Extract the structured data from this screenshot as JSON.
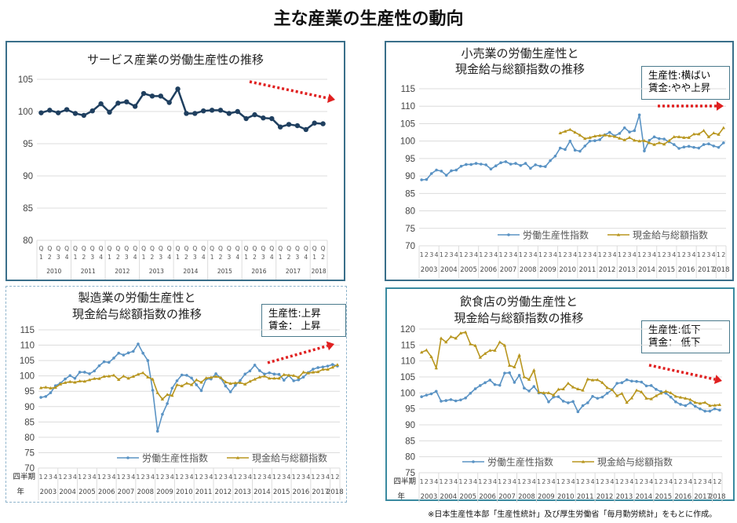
{
  "title": "主な産業の生産性の動向",
  "footnote": "※日本生産性本部「生産性統計」及び厚生労働省「毎月勤労統計」をもとに作成。",
  "colors": {
    "productivity": "#5a93c4",
    "wages": "#b8961f",
    "service_line": "#1f3f5f",
    "arrow": "#e02020"
  },
  "chart_data": [
    {
      "id": "service",
      "type": "line",
      "title": "サービス産業の労働生産性の推移",
      "ylim": [
        80,
        105
      ],
      "yticks": [
        80,
        85,
        90,
        95,
        100,
        105
      ],
      "grid": true,
      "quarter_prefix": "Q",
      "years": [
        "2010",
        "2011",
        "2012",
        "2013",
        "2014",
        "2015",
        "2016",
        "2017",
        "2018"
      ],
      "start_quarter": 1,
      "end_quarter_last_year": 2,
      "trend": "down",
      "series": [
        {
          "values": [
            99.8,
            100.2,
            99.8,
            100.3,
            99.7,
            99.4,
            100.1,
            101.2,
            99.9,
            101.3,
            101.5,
            100.8,
            102.8,
            102.4,
            102.4,
            101.4,
            103.5,
            99.7,
            99.7,
            100.1,
            100.2,
            100.2,
            99.7,
            100.0,
            98.9,
            99.5,
            99.0,
            98.9,
            97.6,
            98.0,
            97.8,
            97.2,
            98.2,
            98.1
          ]
        }
      ]
    },
    {
      "id": "retail",
      "type": "line",
      "title": [
        "小売業の労働生産性と",
        "現金給与総額指数の推移"
      ],
      "note": [
        "生産性:横ばい",
        "賃金:やや上昇"
      ],
      "ylim": [
        70,
        115
      ],
      "yticks": [
        70,
        75,
        80,
        85,
        90,
        95,
        100,
        105,
        110,
        115
      ],
      "grid": true,
      "years": [
        "2003",
        "2004",
        "2005",
        "2006",
        "2007",
        "2008",
        "2009",
        "2010",
        "2011",
        "2012",
        "2013",
        "2014",
        "2015",
        "2016",
        "2017",
        "2018"
      ],
      "legend_position": "bottom-inside",
      "trend": "flat",
      "series": [
        {
          "name": "労働生産性指数",
          "values": [
            88.9,
            89.0,
            90.7,
            91.7,
            91.4,
            90.2,
            91.5,
            91.7,
            92.8,
            93.3,
            93.3,
            93.6,
            93.4,
            93.2,
            92.0,
            92.9,
            93.8,
            94.1,
            93.4,
            93.6,
            93.0,
            93.6,
            92.2,
            93.2,
            92.8,
            92.7,
            94.4,
            95.7,
            98.0,
            97.6,
            100.0,
            97.4,
            97.1,
            98.6,
            100.0,
            100.1,
            100.4,
            101.8,
            102.5,
            101.5,
            102.2,
            103.8,
            102.6,
            103.0,
            107.5,
            97.2,
            100.2,
            101.2,
            100.7,
            100.6,
            99.8,
            99.0,
            97.9,
            98.3,
            98.5,
            98.2,
            98.0,
            99.0,
            99.2,
            98.6,
            98.2,
            99.5
          ]
        },
        {
          "name": "現金給与総額指数",
          "values": [
            null,
            null,
            null,
            null,
            null,
            null,
            null,
            null,
            null,
            null,
            null,
            null,
            null,
            null,
            null,
            null,
            null,
            null,
            null,
            null,
            null,
            null,
            null,
            null,
            null,
            null,
            null,
            null,
            102.3,
            102.8,
            103.3,
            102.5,
            101.7,
            100.7,
            101.0,
            101.4,
            101.6,
            101.7,
            101.5,
            101.3,
            100.8,
            100.3,
            101.0,
            100.2,
            100.0,
            100.1,
            99.5,
            99.0,
            99.5,
            99.1,
            100.1,
            101.2,
            101.2,
            101.0,
            101.0,
            102.0,
            102.0,
            103.0,
            101.2,
            102.3,
            101.9,
            103.8
          ]
        }
      ]
    },
    {
      "id": "manufacturing",
      "type": "line",
      "title": [
        "製造業の労働生産性と",
        "現金給与総額指数の推移"
      ],
      "note": [
        "生産性:上昇",
        "賃金：  上昇"
      ],
      "ylim": [
        70,
        115
      ],
      "yticks": [
        70,
        75,
        80,
        85,
        90,
        95,
        100,
        105,
        110,
        115
      ],
      "grid": true,
      "row_labels": [
        "四半期",
        "年"
      ],
      "years": [
        "2003",
        "2004",
        "2005",
        "2006",
        "2007",
        "2008",
        "2009",
        "2010",
        "2011",
        "2012",
        "2013",
        "2014",
        "2015",
        "2016",
        "2017",
        "2018"
      ],
      "legend_position": "bottom-inside",
      "trend": "up",
      "series": [
        {
          "name": "労働生産性指数",
          "values": [
            93.0,
            93.3,
            94.5,
            96.8,
            97.6,
            99.0,
            100.1,
            99.2,
            101.2,
            101.2,
            100.7,
            101.6,
            103.3,
            104.6,
            104.4,
            105.8,
            107.4,
            106.8,
            107.5,
            108.0,
            110.4,
            107.4,
            105.0,
            95.3,
            82.0,
            87.5,
            91.0,
            96.0,
            98.4,
            100.3,
            100.2,
            99.3,
            97.1,
            95.2,
            99.0,
            99.0,
            100.7,
            99.3,
            96.7,
            94.8,
            96.9,
            98.5,
            100.6,
            101.6,
            103.5,
            101.7,
            100.6,
            101.0,
            100.6,
            100.5,
            98.6,
            100.1,
            98.4,
            98.7,
            99.6,
            101.1,
            102.2,
            102.7,
            102.9,
            103.2,
            103.7,
            103.2
          ]
        },
        {
          "name": "現金給与総額指数",
          "values": [
            96.1,
            96.3,
            96.0,
            96.2,
            97.3,
            97.8,
            98.1,
            97.9,
            98.3,
            98.2,
            98.7,
            99.1,
            99.1,
            99.8,
            99.9,
            100.2,
            98.8,
            99.9,
            99.2,
            99.8,
            100.5,
            101.0,
            99.6,
            98.9,
            94.5,
            92.4,
            93.9,
            93.6,
            97.1,
            96.7,
            97.6,
            97.1,
            98.7,
            97.9,
            99.3,
            99.5,
            99.8,
            99.4,
            98.0,
            97.5,
            97.7,
            97.8,
            97.3,
            98.2,
            98.9,
            99.6,
            99.9,
            99.2,
            99.2,
            99.2,
            100.4,
            100.2,
            100.1,
            99.5,
            101.2,
            100.9,
            101.2,
            101.3,
            102.1,
            102.1,
            102.8,
            103.6
          ]
        }
      ]
    },
    {
      "id": "restaurant",
      "type": "line",
      "title": [
        "飲食店の労働生産性と",
        "現金給与総額指数の推移"
      ],
      "note": [
        "生産性:低下",
        "賃金：  低下"
      ],
      "ylim": [
        75,
        120
      ],
      "yticks": [
        75,
        80,
        85,
        90,
        95,
        100,
        105,
        110,
        115,
        120
      ],
      "grid": true,
      "row_labels": [
        "四半期",
        "年"
      ],
      "years": [
        "2003",
        "2004",
        "2005",
        "2006",
        "2007",
        "2008",
        "2009",
        "2010",
        "2011",
        "2012",
        "2013",
        "2014",
        "2015",
        "2016",
        "2017",
        "2018"
      ],
      "legend_position": "bottom-inside",
      "trend": "down",
      "series": [
        {
          "name": "労働生産性指数",
          "values": [
            98.8,
            99.3,
            99.7,
            100.5,
            97.4,
            97.6,
            97.9,
            97.5,
            97.8,
            98.4,
            99.9,
            101.3,
            102.3,
            103.2,
            104.0,
            102.6,
            102.4,
            106.2,
            106.3,
            103.3,
            105.5,
            101.5,
            100.6,
            102.0,
            100.0,
            99.8,
            97.2,
            98.7,
            98.8,
            97.4,
            96.9,
            97.3,
            94.1,
            96.0,
            96.9,
            98.9,
            98.3,
            98.7,
            99.9,
            101.0,
            103.0,
            103.2,
            104.1,
            103.7,
            103.6,
            103.4,
            102.2,
            102.3,
            101.1,
            100.4,
            99.9,
            98.7,
            97.2,
            96.4,
            96.0,
            96.9,
            95.8,
            95.0,
            94.3,
            94.3,
            95.0,
            94.6
          ]
        },
        {
          "name": "現金給与総額指数",
          "values": [
            112.7,
            113.4,
            111.3,
            107.8,
            117.1,
            115.9,
            117.6,
            117.1,
            118.7,
            119.0,
            115.3,
            114.8,
            111.1,
            112.3,
            113.3,
            113.3,
            115.9,
            114.9,
            108.6,
            108.1,
            111.8,
            105.0,
            104.2,
            107.1,
            100.2,
            100.0,
            100.0,
            99.3,
            101.1,
            101.2,
            103.0,
            101.8,
            101.2,
            100.8,
            104.3,
            104.0,
            104.1,
            103.2,
            101.6,
            101.0,
            99.1,
            99.8,
            97.0,
            98.4,
            100.8,
            100.3,
            98.3,
            98.1,
            99.1,
            99.9,
            100.5,
            100.0,
            98.9,
            98.6,
            98.3,
            97.9,
            97.0,
            96.7,
            97.0,
            96.0,
            96.1,
            96.3
          ]
        }
      ]
    }
  ]
}
